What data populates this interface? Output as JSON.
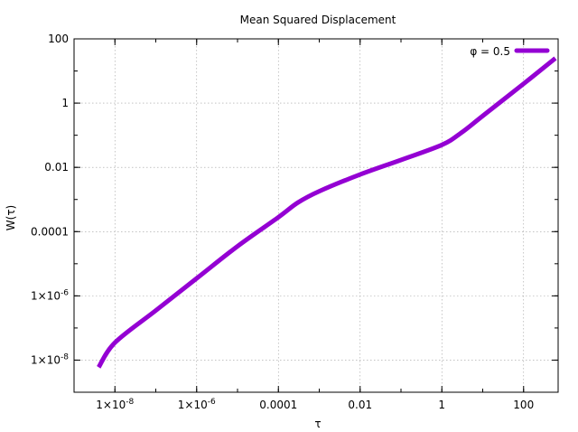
{
  "chart_data": {
    "type": "line",
    "title": "Mean Squared Displacement",
    "xlabel": "τ",
    "ylabel": "W(τ)",
    "x_scale": "log",
    "y_scale": "log",
    "xlim": [
      1e-09,
      700
    ],
    "ylim": [
      1e-09,
      100
    ],
    "grid": true,
    "legend_position": "top-right",
    "x_ticks": [
      {
        "value": 1e-08,
        "base": "1×10",
        "exp": "-8"
      },
      {
        "value": 1e-06,
        "base": "1×10",
        "exp": "-6"
      },
      {
        "value": 0.0001,
        "base": "0.0001",
        "exp": ""
      },
      {
        "value": 0.01,
        "base": "0.01",
        "exp": ""
      },
      {
        "value": 1,
        "base": "1",
        "exp": ""
      },
      {
        "value": 100,
        "base": "100",
        "exp": ""
      }
    ],
    "y_ticks": [
      {
        "value": 1e-08,
        "base": "1×10",
        "exp": "-8"
      },
      {
        "value": 1e-06,
        "base": "1×10",
        "exp": "-6"
      },
      {
        "value": 0.0001,
        "base": "0.0001",
        "exp": ""
      },
      {
        "value": 0.01,
        "base": "0.01",
        "exp": ""
      },
      {
        "value": 1,
        "base": "1",
        "exp": ""
      },
      {
        "value": 100,
        "base": "100",
        "exp": ""
      }
    ],
    "series": [
      {
        "name": "φ = 0.5",
        "color": "#9400d3",
        "x": [
          4e-09,
          1e-08,
          1e-07,
          1e-06,
          1e-05,
          0.0001,
          0.0003,
          0.001,
          0.01,
          0.1,
          1,
          3,
          10,
          100,
          600
        ],
        "y": [
          6e-09,
          3.5e-08,
          3.5e-07,
          3.5e-06,
          3.5e-05,
          0.00028,
          0.0008,
          0.0018,
          0.006,
          0.017,
          0.05,
          0.12,
          0.4,
          4,
          25
        ]
      }
    ]
  }
}
